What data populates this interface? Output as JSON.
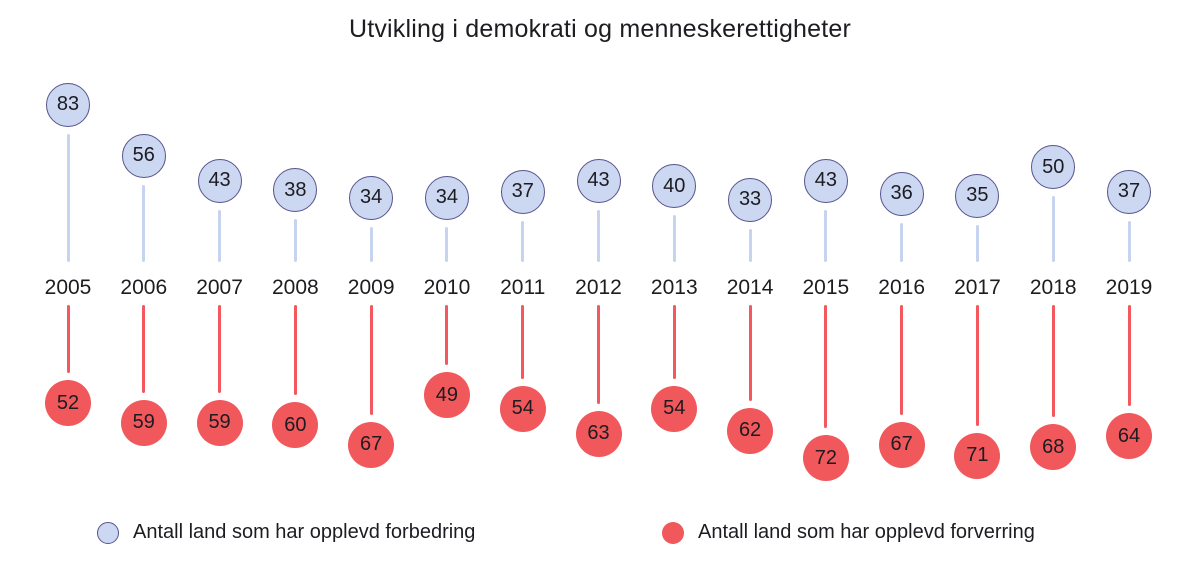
{
  "chart_data": {
    "type": "lollipop",
    "title": "Utvikling i demokrati og menneskerettigheter",
    "categories": [
      "2005",
      "2006",
      "2007",
      "2008",
      "2009",
      "2010",
      "2011",
      "2012",
      "2013",
      "2014",
      "2015",
      "2016",
      "2017",
      "2018",
      "2019"
    ],
    "series": [
      {
        "name": "Antall land som har opplevd forbedring",
        "role": "improvement",
        "values": [
          83,
          56,
          43,
          38,
          34,
          34,
          37,
          43,
          40,
          33,
          43,
          36,
          35,
          50,
          37
        ]
      },
      {
        "name": "Antall land som har opplevd forverring",
        "role": "deterioration",
        "values": [
          52,
          59,
          59,
          60,
          67,
          49,
          54,
          63,
          54,
          62,
          72,
          67,
          71,
          68,
          64
        ]
      }
    ],
    "legend_position": "bottom",
    "grid": false,
    "axis_lines": false
  },
  "colors": {
    "background": "#ffffff",
    "text": "#1c1c21",
    "improvement_fill": "#ccd7f1",
    "improvement_border": "#55548e",
    "improvement_stem": "#c7d4ef",
    "deterioration_fill": "#f0585c",
    "deterioration_stem": "#f2585d"
  }
}
